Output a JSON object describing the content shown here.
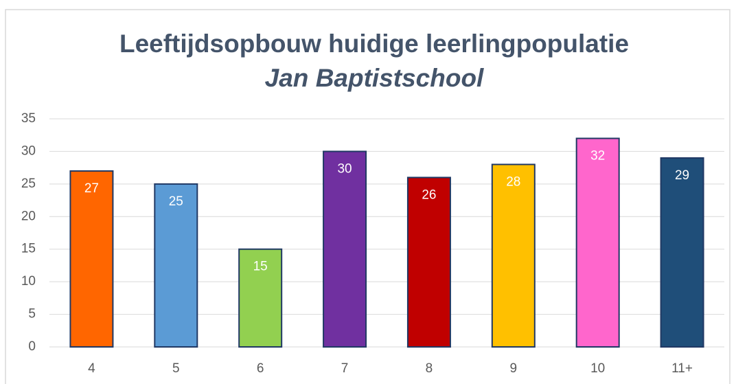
{
  "chart_data": {
    "type": "bar",
    "title": "Leeftijdsopbouw huidige leerlingpopulatie",
    "subtitle": "Jan Baptistschool",
    "categories": [
      "4",
      "5",
      "6",
      "7",
      "8",
      "9",
      "10",
      "11+"
    ],
    "values": [
      27,
      25,
      15,
      30,
      26,
      28,
      32,
      29
    ],
    "colors": [
      "#ff6600",
      "#5b9bd5",
      "#92d050",
      "#7030a0",
      "#c00000",
      "#ffc000",
      "#ff66cc",
      "#1f4e79"
    ],
    "ylim": [
      0,
      35
    ],
    "yticks": [
      0,
      5,
      10,
      15,
      20,
      25,
      30,
      35
    ],
    "grid": true
  }
}
